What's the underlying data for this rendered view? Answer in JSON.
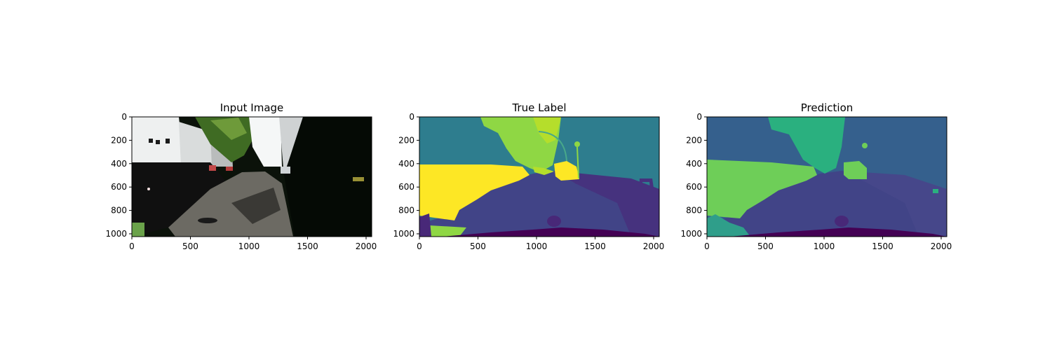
{
  "figure": {
    "panels": [
      {
        "title": "Input Image"
      },
      {
        "title": "True Label"
      },
      {
        "title": "Prediction"
      }
    ]
  },
  "chart_data": [
    {
      "type": "image",
      "title": "Input Image",
      "xlim": [
        0,
        2048
      ],
      "ylim": [
        1024,
        0
      ],
      "xticks": [
        0,
        500,
        1000,
        1500,
        2000
      ],
      "yticks": [
        0,
        200,
        400,
        600,
        800,
        1000
      ],
      "grid": false
    },
    {
      "type": "heatmap",
      "title": "True Label",
      "xlim": [
        0,
        2048
      ],
      "ylim": [
        1024,
        0
      ],
      "xticks": [
        0,
        500,
        1000,
        1500,
        2000
      ],
      "yticks": [
        0,
        200,
        400,
        600,
        800,
        1000
      ],
      "colormap": "viridis",
      "grid": false
    },
    {
      "type": "heatmap",
      "title": "Prediction",
      "xlim": [
        0,
        2048
      ],
      "ylim": [
        1024,
        0
      ],
      "xticks": [
        0,
        500,
        1000,
        1500,
        2000
      ],
      "yticks": [
        0,
        200,
        400,
        600,
        800,
        1000
      ],
      "colormap": "viridis",
      "grid": false
    }
  ],
  "palette": {
    "sky_teal": "#2e7d8e",
    "building_blue": "#35608d",
    "vegetation_green": "#6ece58",
    "car_yellow": "#fde725",
    "pole_lime": "#b5de2b",
    "road_indigo": "#414487",
    "sidewalk_purple": "#482878",
    "egovehicle_dark": "#440154",
    "prediction_green": "#2ab07f",
    "photo_dark": "#0b120a",
    "photo_wall": "#e8eaea"
  }
}
